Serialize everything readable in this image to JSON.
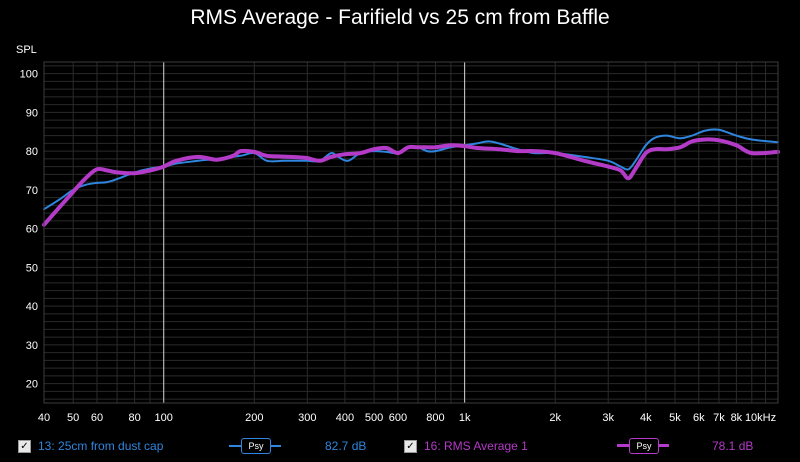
{
  "title": "RMS Average - Farifield vs 25 cm from Baffle",
  "colors": {
    "background": "#000000",
    "grid_minor": "#2a2a2a",
    "grid_major": "#d8d8d8",
    "axis_text": "#ffffff"
  },
  "chart_data": {
    "type": "line",
    "title": "RMS Average - Farifield vs 25 cm from Baffle",
    "ylabel": "SPL",
    "xlabel": "",
    "x_scale": "log",
    "xlim": [
      40,
      11000
    ],
    "ylim": [
      15,
      103
    ],
    "y_ticks": [
      20,
      30,
      40,
      50,
      60,
      70,
      80,
      90,
      100
    ],
    "x_ticks": [
      {
        "v": 40,
        "label": "40"
      },
      {
        "v": 50,
        "label": "50"
      },
      {
        "v": 60,
        "label": "60"
      },
      {
        "v": 80,
        "label": "80"
      },
      {
        "v": 100,
        "label": "100"
      },
      {
        "v": 200,
        "label": "200"
      },
      {
        "v": 300,
        "label": "300"
      },
      {
        "v": 400,
        "label": "400"
      },
      {
        "v": 500,
        "label": "500"
      },
      {
        "v": 600,
        "label": "600"
      },
      {
        "v": 800,
        "label": "800"
      },
      {
        "v": 1000,
        "label": "1k"
      },
      {
        "v": 2000,
        "label": "2k"
      },
      {
        "v": 3000,
        "label": "3k"
      },
      {
        "v": 4000,
        "label": "4k"
      },
      {
        "v": 5000,
        "label": "5k"
      },
      {
        "v": 6000,
        "label": "6k"
      },
      {
        "v": 7000,
        "label": "7k"
      },
      {
        "v": 8000,
        "label": "8k"
      },
      {
        "v": 10000,
        "label": "10kHz"
      }
    ],
    "major_gridlines_x": [
      100,
      1000
    ],
    "grid": true,
    "series": [
      {
        "name": "13: 25cm from dust cap",
        "color": "#2e86de",
        "width": 2,
        "points": [
          [
            40,
            65
          ],
          [
            45,
            67.5
          ],
          [
            50,
            70
          ],
          [
            55,
            71.3
          ],
          [
            60,
            71.8
          ],
          [
            65,
            72
          ],
          [
            70,
            72.8
          ],
          [
            80,
            74.5
          ],
          [
            90,
            75.5
          ],
          [
            100,
            76
          ],
          [
            110,
            76.8
          ],
          [
            130,
            77.5
          ],
          [
            150,
            78
          ],
          [
            180,
            78.8
          ],
          [
            200,
            79.5
          ],
          [
            220,
            77.5
          ],
          [
            250,
            77.5
          ],
          [
            280,
            77.5
          ],
          [
            300,
            77.5
          ],
          [
            330,
            77.5
          ],
          [
            360,
            79.5
          ],
          [
            380,
            78.5
          ],
          [
            410,
            77.5
          ],
          [
            450,
            79.5
          ],
          [
            500,
            80
          ],
          [
            550,
            79.8
          ],
          [
            600,
            79.5
          ],
          [
            650,
            81
          ],
          [
            700,
            81
          ],
          [
            750,
            80
          ],
          [
            800,
            80
          ],
          [
            900,
            81
          ],
          [
            1000,
            81.5
          ],
          [
            1100,
            82
          ],
          [
            1200,
            82.5
          ],
          [
            1300,
            82
          ],
          [
            1500,
            80.5
          ],
          [
            1700,
            79.5
          ],
          [
            2000,
            79.5
          ],
          [
            2500,
            78.5
          ],
          [
            3000,
            77.5
          ],
          [
            3300,
            76
          ],
          [
            3500,
            75.3
          ],
          [
            3700,
            77.5
          ],
          [
            4000,
            81.5
          ],
          [
            4300,
            83.5
          ],
          [
            4700,
            84
          ],
          [
            5200,
            83.3
          ],
          [
            5700,
            84
          ],
          [
            6300,
            85.3
          ],
          [
            7000,
            85.5
          ],
          [
            8000,
            84
          ],
          [
            9000,
            83
          ],
          [
            11000,
            82.3
          ]
        ]
      },
      {
        "name": "16: RMS Average 1",
        "color": "#b43ac8",
        "width": 4,
        "points": [
          [
            40,
            61
          ],
          [
            45,
            65.5
          ],
          [
            50,
            69.5
          ],
          [
            55,
            73
          ],
          [
            60,
            75.3
          ],
          [
            65,
            75
          ],
          [
            70,
            74.5
          ],
          [
            80,
            74.3
          ],
          [
            90,
            75
          ],
          [
            100,
            76
          ],
          [
            110,
            77.5
          ],
          [
            130,
            78.5
          ],
          [
            150,
            77.8
          ],
          [
            170,
            78.8
          ],
          [
            180,
            80
          ],
          [
            200,
            79.8
          ],
          [
            220,
            78.8
          ],
          [
            250,
            78.6
          ],
          [
            280,
            78.4
          ],
          [
            300,
            78.2
          ],
          [
            330,
            77.5
          ],
          [
            360,
            78.5
          ],
          [
            400,
            79.2
          ],
          [
            450,
            79.5
          ],
          [
            500,
            80.5
          ],
          [
            550,
            80.8
          ],
          [
            600,
            79.5
          ],
          [
            650,
            81
          ],
          [
            700,
            81
          ],
          [
            750,
            81
          ],
          [
            800,
            81
          ],
          [
            900,
            81.5
          ],
          [
            1000,
            81.3
          ],
          [
            1100,
            80.8
          ],
          [
            1300,
            80.5
          ],
          [
            1500,
            80
          ],
          [
            1700,
            80
          ],
          [
            2000,
            79.5
          ],
          [
            2500,
            77.5
          ],
          [
            3000,
            76
          ],
          [
            3300,
            75
          ],
          [
            3500,
            73
          ],
          [
            3700,
            75.5
          ],
          [
            4000,
            79.5
          ],
          [
            4300,
            80.5
          ],
          [
            4700,
            80.5
          ],
          [
            5200,
            81
          ],
          [
            5700,
            82.5
          ],
          [
            6300,
            83
          ],
          [
            7000,
            82.8
          ],
          [
            8000,
            81.5
          ],
          [
            9000,
            79.5
          ],
          [
            11000,
            79.8
          ]
        ]
      }
    ]
  },
  "legend": {
    "items": [
      {
        "checked": true,
        "check_mark": "✓",
        "name": "13: 25cm from dust cap",
        "psy_label": "Psy",
        "value": "82.7 dB",
        "color": "#2e86de"
      },
      {
        "checked": true,
        "check_mark": "✓",
        "name": "16: RMS Average 1",
        "psy_label": "Psy",
        "value": "78.1 dB",
        "color": "#b43ac8"
      }
    ]
  }
}
